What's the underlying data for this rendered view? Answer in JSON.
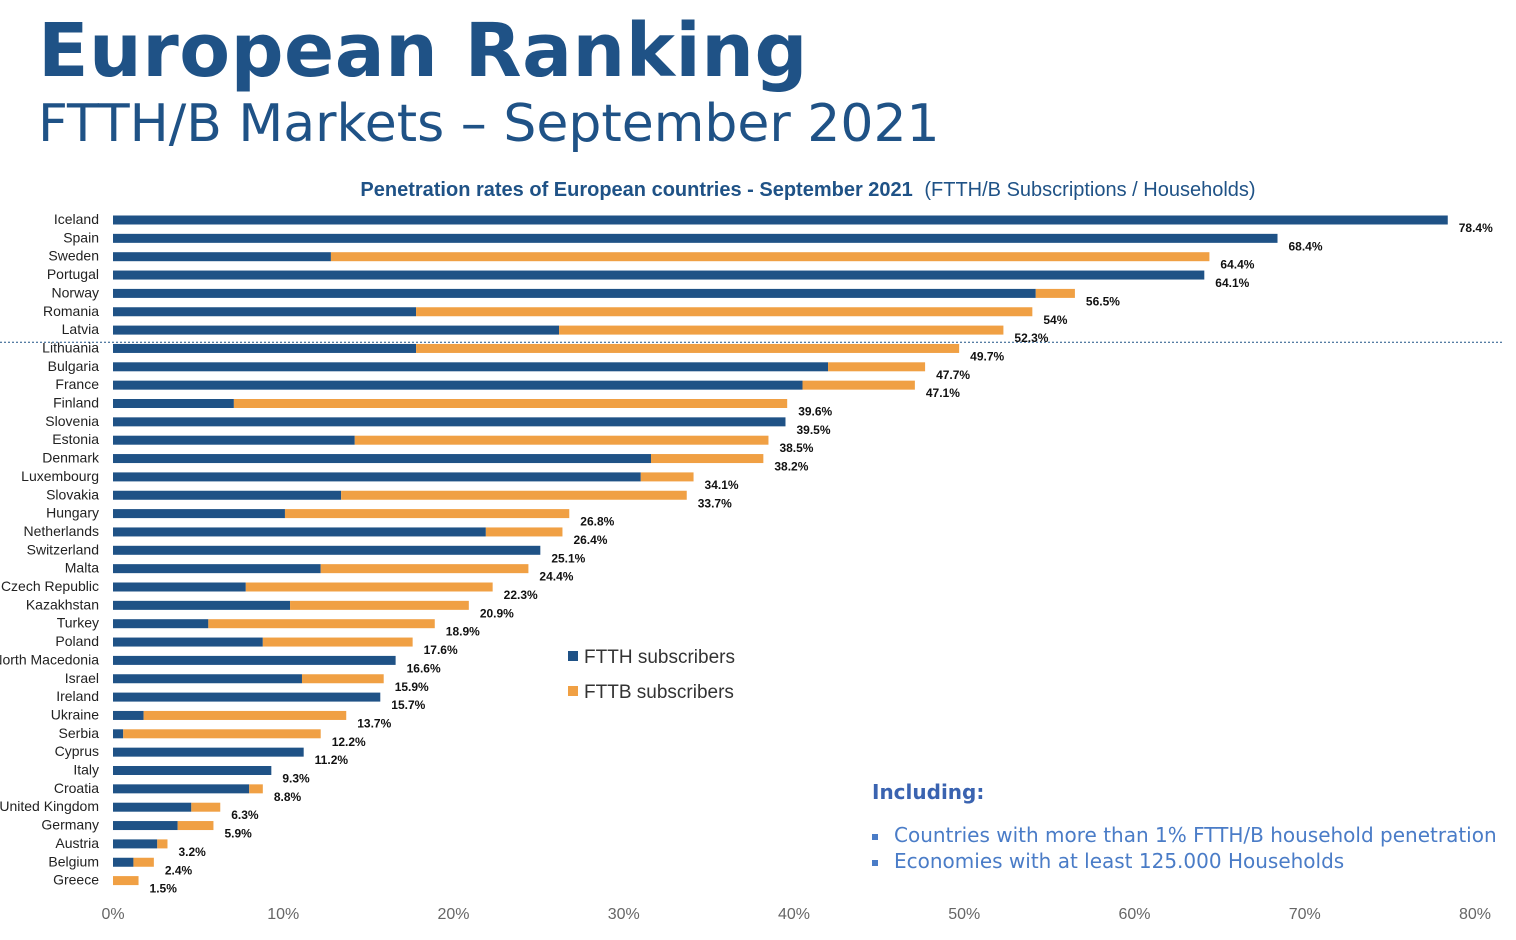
{
  "page": {
    "title": "European Ranking",
    "subtitle": "FTTH/B Markets – September 2021"
  },
  "notes": {
    "heading": "Including:",
    "items": [
      "Countries with more than 1% FTTH/B household penetration",
      "Economies with at least 125.000 Households"
    ]
  },
  "chart_data": {
    "type": "bar",
    "orientation": "horizontal",
    "stacked": true,
    "title": "Penetration rates of European countries - September 2021",
    "title_suffix": "(FTTH/B Subscriptions / Households)",
    "xlim": [
      0,
      80
    ],
    "xticks": [
      "0%",
      "10%",
      "20%",
      "30%",
      "40%",
      "50%",
      "60%",
      "70%",
      "80%"
    ],
    "legend_position": "center",
    "threshold_after": "Latvia",
    "categories": [
      "Iceland",
      "Spain",
      "Sweden",
      "Portugal",
      "Norway",
      "Romania",
      "Latvia",
      "Lithuania",
      "Bulgaria",
      "France",
      "Finland",
      "Slovenia",
      "Estonia",
      "Denmark",
      "Luxembourg",
      "Slovakia",
      "Hungary",
      "Netherlands",
      "Switzerland",
      "Malta",
      "Czech Republic",
      "Kazakhstan",
      "Turkey",
      "Poland",
      "North Macedonia",
      "Israel",
      "Ireland",
      "Ukraine",
      "Serbia",
      "Cyprus",
      "Italy",
      "Croatia",
      "United Kingdom",
      "Germany",
      "Austria",
      "Belgium",
      "Greece"
    ],
    "series": [
      {
        "name": "FTTH subscribers",
        "color": "#1f5286",
        "values": [
          78.4,
          68.4,
          12.8,
          64.1,
          54.2,
          17.8,
          26.2,
          17.8,
          42.0,
          40.5,
          7.1,
          39.5,
          14.2,
          31.6,
          31.0,
          13.4,
          10.1,
          21.9,
          25.1,
          12.2,
          7.8,
          10.4,
          5.6,
          8.8,
          16.6,
          11.1,
          15.7,
          1.8,
          0.6,
          11.2,
          9.3,
          8.0,
          4.6,
          3.8,
          2.6,
          1.2,
          0.0
        ]
      },
      {
        "name": "FTTB subscribers",
        "color": "#f0a044",
        "values": [
          0.0,
          0.0,
          51.6,
          0.0,
          2.3,
          36.2,
          26.1,
          31.9,
          5.7,
          6.6,
          32.5,
          0.0,
          24.3,
          6.6,
          3.1,
          20.3,
          16.7,
          4.5,
          0.0,
          12.2,
          14.5,
          10.5,
          13.3,
          8.8,
          0.0,
          4.8,
          0.0,
          11.9,
          11.6,
          0.0,
          0.0,
          0.8,
          1.7,
          2.1,
          0.6,
          1.2,
          1.5
        ]
      }
    ],
    "labels": [
      "78.4%",
      "68.4%",
      "64.4%",
      "64.1%",
      "56.5%",
      "54%",
      "52.3%",
      "49.7%",
      "47.7%",
      "47.1%",
      "39.6%",
      "39.5%",
      "38.5%",
      "38.2%",
      "34.1%",
      "33.7%",
      "26.8%",
      "26.4%",
      "25.1%",
      "24.4%",
      "22.3%",
      "20.9%",
      "18.9%",
      "17.6%",
      "16.6%",
      "15.9%",
      "15.7%",
      "13.7%",
      "12.2%",
      "11.2%",
      "9.3%",
      "8.8%",
      "6.3%",
      "5.9%",
      "3.2%",
      "2.4%",
      "1.5%"
    ]
  }
}
